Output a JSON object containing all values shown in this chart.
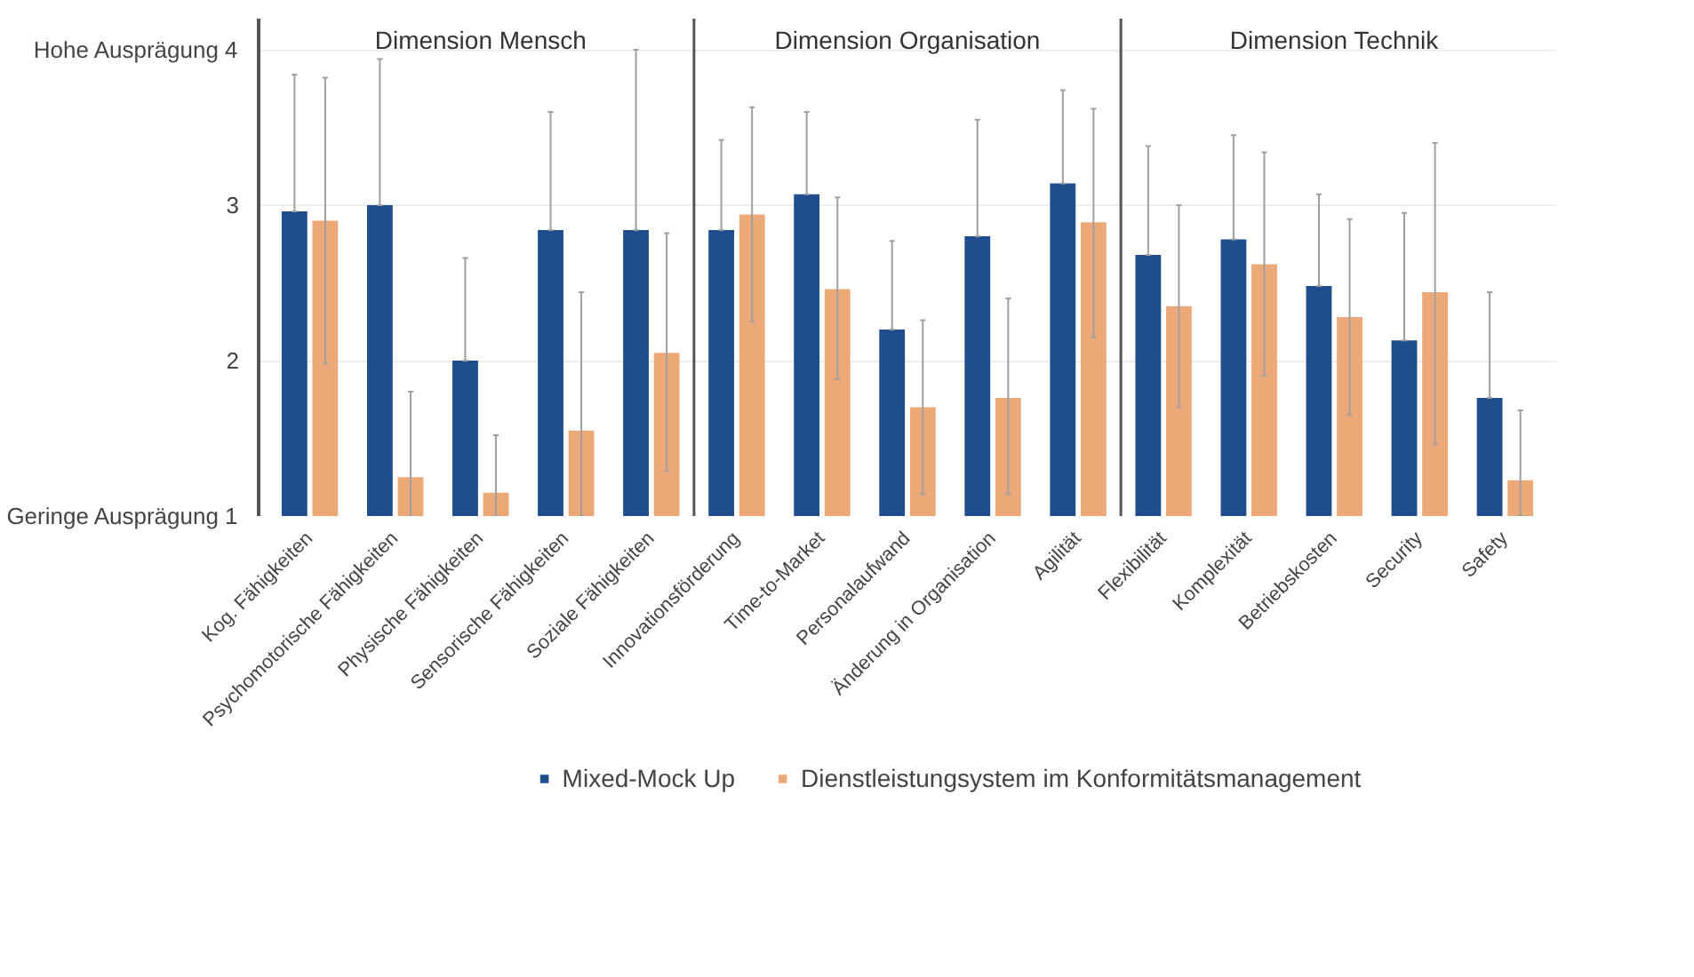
{
  "chart_data": {
    "type": "bar",
    "categories": [
      "Kog. Fähigkeiten",
      "Psychomotorische Fähigkeiten",
      "Physische Fähigkeiten",
      "Sensorische Fähigkeiten",
      "Soziale Fähigkeiten",
      "Innovationsförderung",
      "Time-to-Market",
      "Personalaufwand",
      "Änderung in Organisation",
      "Agilität",
      "Flexibilität",
      "Komplexität",
      "Betriebskosten",
      "Security",
      "Safety"
    ],
    "series": [
      {
        "name": "Mixed-Mock Up",
        "color": "#1f4e8c",
        "values": [
          2.96,
          3.0,
          2.0,
          2.84,
          2.84,
          2.84,
          3.07,
          2.2,
          2.8,
          3.14,
          2.68,
          2.78,
          2.48,
          2.13,
          1.76
        ],
        "errors": [
          [
            2.96,
            3.84
          ],
          [
            3.0,
            3.94
          ],
          [
            2.0,
            2.66
          ],
          [
            2.84,
            3.6
          ],
          [
            2.84,
            4.0
          ],
          [
            2.84,
            3.42
          ],
          [
            3.07,
            3.6
          ],
          [
            2.2,
            2.77
          ],
          [
            2.8,
            3.55
          ],
          [
            3.14,
            3.74
          ],
          [
            2.68,
            3.38
          ],
          [
            2.78,
            3.45
          ],
          [
            2.48,
            3.07
          ],
          [
            2.13,
            2.95
          ],
          [
            1.76,
            2.44
          ]
        ]
      },
      {
        "name": "Dienstleistungsystem im Konformitätsmanagement",
        "color": "#eda878",
        "values": [
          2.9,
          1.25,
          1.15,
          1.55,
          2.05,
          2.94,
          2.46,
          1.7,
          1.76,
          2.89,
          2.35,
          2.62,
          2.28,
          2.44,
          1.23
        ],
        "errors": [
          [
            1.98,
            3.82
          ],
          [
            1.0,
            1.8
          ],
          [
            1.0,
            1.52
          ],
          [
            1.0,
            2.44
          ],
          [
            1.29,
            2.82
          ],
          [
            2.25,
            3.63
          ],
          [
            1.88,
            3.05
          ],
          [
            1.14,
            2.26
          ],
          [
            1.14,
            2.4
          ],
          [
            2.15,
            3.62
          ],
          [
            1.7,
            3.0
          ],
          [
            1.9,
            3.34
          ],
          [
            1.65,
            2.91
          ],
          [
            1.46,
            3.4
          ],
          [
            1.0,
            1.68
          ]
        ]
      }
    ],
    "ylim": [
      1,
      4.2
    ],
    "yticks": [
      {
        "value": 1,
        "label": "Geringe Ausprägung 1"
      },
      2,
      3,
      {
        "value": 4,
        "label": "Hohe Ausprägung 4"
      }
    ],
    "grid": "y",
    "legend": "bottom",
    "annotations": [
      "Dimension Mensch",
      "Dimension Organisation",
      "Dimension Technik"
    ]
  }
}
